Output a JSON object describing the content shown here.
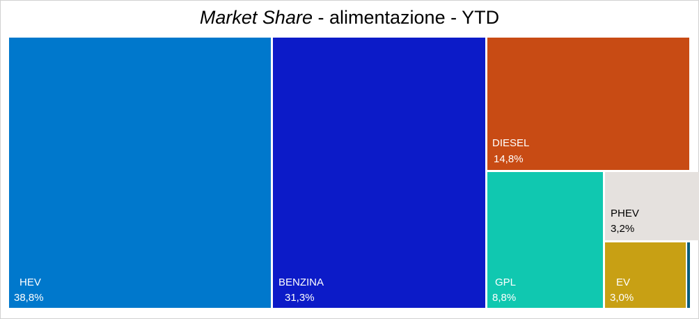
{
  "chart_title": {
    "main": "Market Share",
    "rest": " - alimentazione - YTD"
  },
  "chart_data": {
    "type": "treemap",
    "title": "Market Share - alimentazione - YTD",
    "items": [
      {
        "name": "HEV",
        "value_label": "38,8%",
        "value": 38.8,
        "color": "#0078CC",
        "text_color": "#ffffff"
      },
      {
        "name": "BENZINA",
        "value_label": "31,3%",
        "value": 31.3,
        "color": "#0C1BC8",
        "text_color": "#ffffff"
      },
      {
        "name": "DIESEL",
        "value_label": "14,8%",
        "value": 14.8,
        "color": "#C84B14",
        "text_color": "#ffffff"
      },
      {
        "name": "GPL",
        "value_label": "8,8%",
        "value": 8.8,
        "color": "#10C8B0",
        "text_color": "#ffffff"
      },
      {
        "name": "PHEV",
        "value_label": "3,2%",
        "value": 3.2,
        "color": "#E5E1DE",
        "text_color": "#000000"
      },
      {
        "name": "EV",
        "value_label": "3,0%",
        "value": 3.0,
        "color": "#C8A014",
        "text_color": "#ffffff"
      },
      {
        "name": "",
        "value_label": "",
        "value": 0.1,
        "color": "#0A5C7A",
        "text_color": "#ffffff"
      }
    ]
  }
}
